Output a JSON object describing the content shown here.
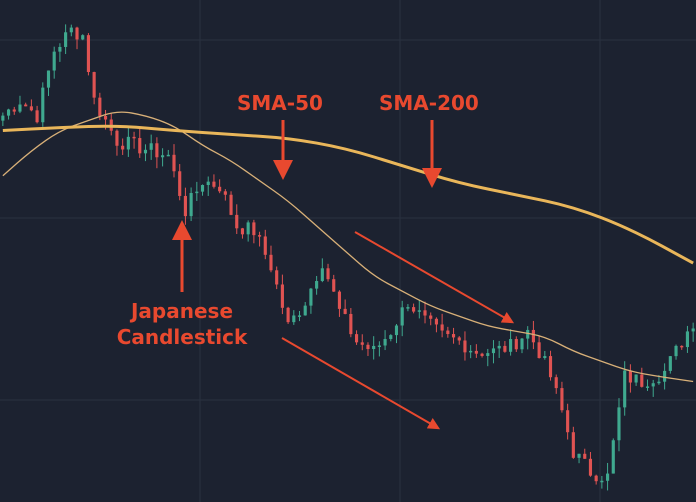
{
  "colors": {
    "background": "#1c2230",
    "grid": "#2a3140",
    "bull": "#3fa98f",
    "bear": "#e05352",
    "sma50": "#d8b078",
    "sma200": "#e9b65a",
    "annotation": "#e8492f"
  },
  "annotations": {
    "sma50": "SMA-50",
    "sma200": "SMA-200",
    "candle_line1": "Japanese",
    "candle_line2": "Candlestick"
  },
  "chart_data": {
    "type": "candlestick",
    "title": "",
    "xlabel": "",
    "ylabel": "",
    "grid": true,
    "ylim": [
      0,
      100
    ],
    "x_count": 122,
    "anchors": [
      [
        0,
        77
      ],
      [
        3,
        80
      ],
      [
        6,
        77
      ],
      [
        9,
        90
      ],
      [
        12,
        94
      ],
      [
        14,
        93
      ],
      [
        16,
        80
      ],
      [
        20,
        72
      ],
      [
        23,
        71
      ],
      [
        26,
        70
      ],
      [
        29,
        69
      ],
      [
        32,
        58
      ],
      [
        35,
        64
      ],
      [
        38,
        63
      ],
      [
        41,
        55
      ],
      [
        44,
        54
      ],
      [
        47,
        47
      ],
      [
        50,
        35
      ],
      [
        53,
        40
      ],
      [
        56,
        48
      ],
      [
        59,
        38
      ],
      [
        62,
        32
      ],
      [
        65,
        30
      ],
      [
        68,
        34
      ],
      [
        71,
        40
      ],
      [
        74,
        36
      ],
      [
        77,
        33
      ],
      [
        80,
        32
      ],
      [
        83,
        30
      ],
      [
        86,
        30
      ],
      [
        89,
        31
      ],
      [
        92,
        34
      ],
      [
        94,
        30
      ],
      [
        96,
        25
      ],
      [
        98,
        18
      ],
      [
        100,
        10
      ],
      [
        103,
        6
      ],
      [
        106,
        5
      ],
      [
        109,
        25
      ],
      [
        112,
        24
      ],
      [
        116,
        26
      ],
      [
        119,
        32
      ],
      [
        121,
        36
      ]
    ],
    "series": [
      {
        "name": "SMA-50",
        "points": [
          [
            0,
            65
          ],
          [
            5,
            70
          ],
          [
            10,
            74
          ],
          [
            15,
            76
          ],
          [
            20,
            78
          ],
          [
            25,
            77
          ],
          [
            30,
            75
          ],
          [
            35,
            71
          ],
          [
            40,
            68
          ],
          [
            45,
            64
          ],
          [
            50,
            60
          ],
          [
            55,
            55
          ],
          [
            60,
            50
          ],
          [
            65,
            45
          ],
          [
            70,
            42
          ],
          [
            75,
            39
          ],
          [
            80,
            37
          ],
          [
            85,
            35
          ],
          [
            90,
            34
          ],
          [
            95,
            33
          ],
          [
            100,
            30
          ],
          [
            105,
            28
          ],
          [
            110,
            26
          ],
          [
            115,
            25
          ],
          [
            121,
            24
          ]
        ]
      },
      {
        "name": "SMA-200",
        "points": [
          [
            0,
            74
          ],
          [
            10,
            74.6
          ],
          [
            20,
            75
          ],
          [
            30,
            74
          ],
          [
            40,
            73.2
          ],
          [
            50,
            72.5
          ],
          [
            60,
            70.5
          ],
          [
            70,
            67
          ],
          [
            80,
            63.5
          ],
          [
            90,
            61.2
          ],
          [
            100,
            58.8
          ],
          [
            110,
            54.4
          ],
          [
            121,
            47.6
          ]
        ]
      }
    ]
  }
}
